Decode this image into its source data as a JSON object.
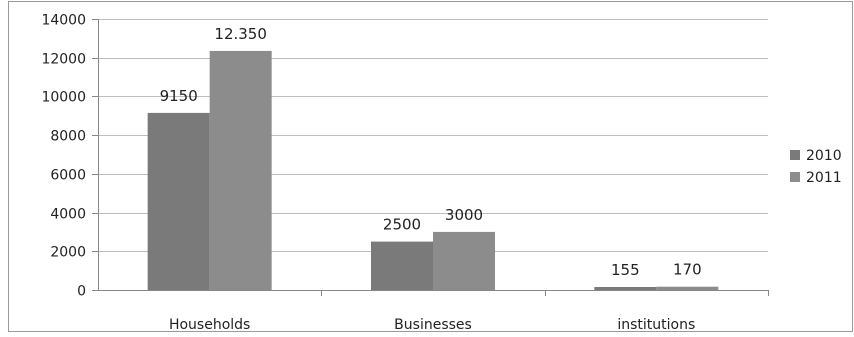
{
  "chart_data": {
    "type": "bar",
    "categories": [
      "Households",
      "Businesses",
      "institutions"
    ],
    "series": [
      {
        "name": "2010",
        "values": [
          9150,
          2500,
          155
        ],
        "labels": [
          "9150",
          "2500",
          "155"
        ],
        "color": "#7a7a7a"
      },
      {
        "name": "2011",
        "values": [
          12350,
          3000,
          170
        ],
        "labels": [
          "12.350",
          "3000",
          "170"
        ],
        "color": "#8c8c8c"
      }
    ],
    "y_ticks": [
      "0",
      "2000",
      "4000",
      "6000",
      "8000",
      "10000",
      "12000",
      "14000"
    ],
    "ylim": [
      0,
      14000
    ],
    "grid": true,
    "legend": "right",
    "title": "",
    "xlabel": "",
    "ylabel": "",
    "colors": {
      "axis": "#888888",
      "grid": "#bdbdbd",
      "frame": "#9a9a9a"
    }
  }
}
